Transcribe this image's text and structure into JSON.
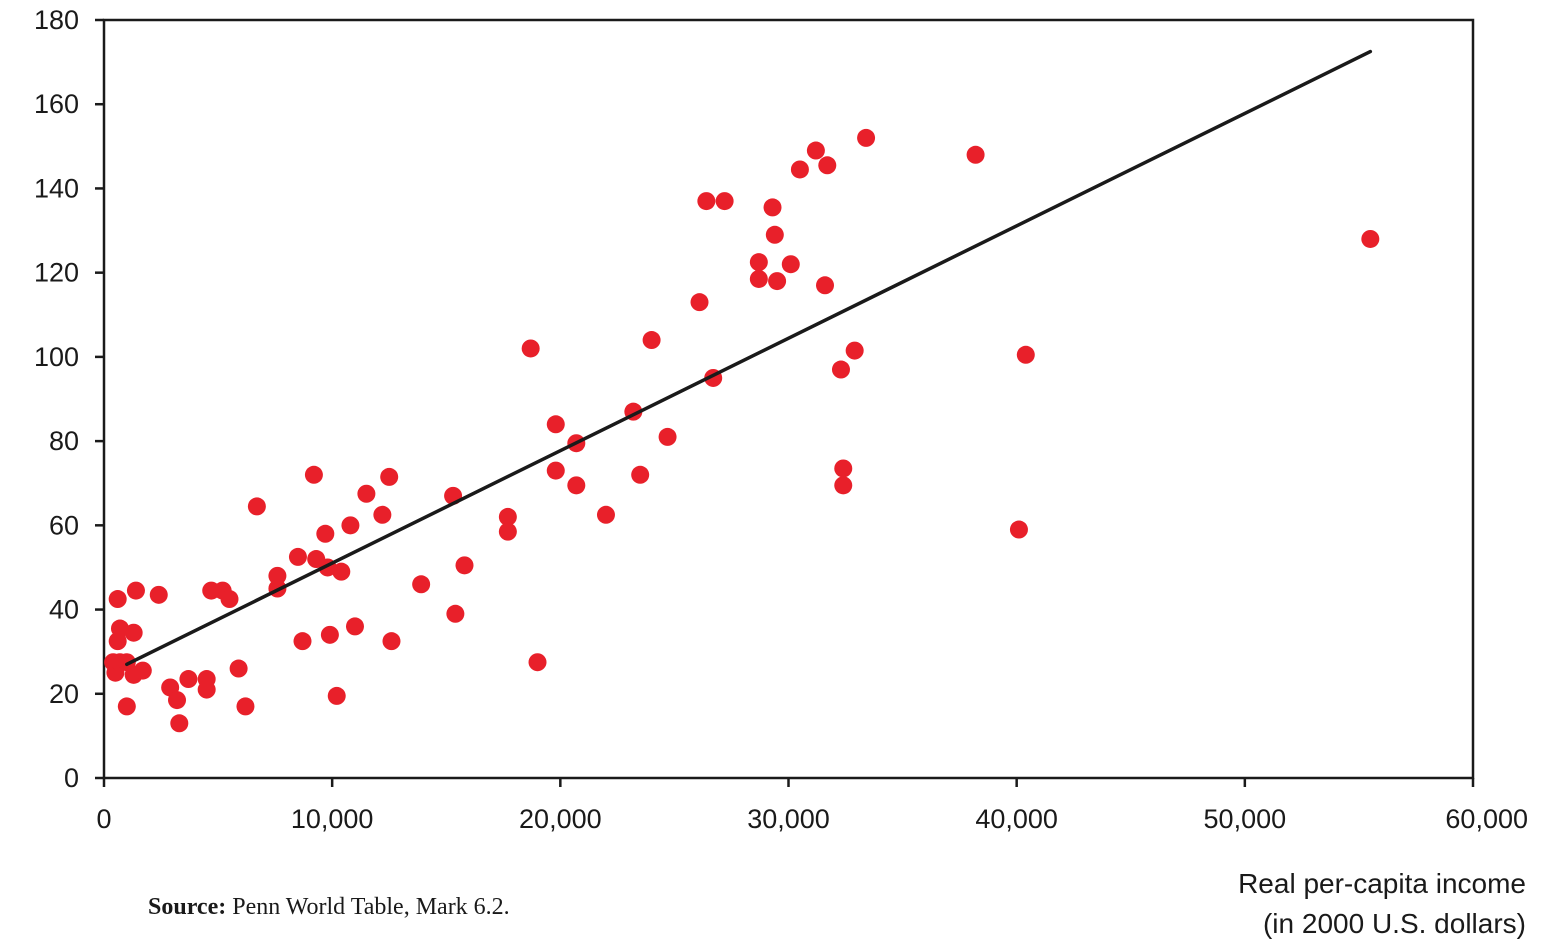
{
  "chart_data": {
    "type": "scatter",
    "title": "",
    "xlabel": [
      "Real per-capita income",
      "(in 2000 U.S. dollars)"
    ],
    "ylabel": "",
    "xlim": [
      0,
      60000
    ],
    "ylim": [
      0,
      180
    ],
    "x_ticks": [
      0,
      10000,
      20000,
      30000,
      40000,
      50000,
      60000
    ],
    "x_tick_labels": [
      "0",
      "10,000",
      "20,000",
      "30,000",
      "40,000",
      "50,000",
      "60,000"
    ],
    "y_ticks": [
      0,
      20,
      40,
      60,
      80,
      100,
      120,
      140,
      160,
      180
    ],
    "y_tick_labels": [
      "0",
      "20",
      "40",
      "60",
      "80",
      "100",
      "120",
      "140",
      "160",
      "180"
    ],
    "grid": false,
    "point_color": "#e8202a",
    "line_color": "#1a1a1a",
    "points": [
      [
        500,
        25
      ],
      [
        400,
        27.5
      ],
      [
        700,
        27.5
      ],
      [
        1000,
        27.5
      ],
      [
        600,
        32.5
      ],
      [
        700,
        35.5
      ],
      [
        600,
        42.5
      ],
      [
        1300,
        34.5
      ],
      [
        1400,
        44.5
      ],
      [
        1300,
        24.5
      ],
      [
        1700,
        25.5
      ],
      [
        1000,
        17
      ],
      [
        2400,
        43.5
      ],
      [
        2900,
        21.5
      ],
      [
        3200,
        18.5
      ],
      [
        3300,
        13
      ],
      [
        3700,
        23.5
      ],
      [
        4500,
        23.5
      ],
      [
        4500,
        21
      ],
      [
        4700,
        44.5
      ],
      [
        5200,
        44.5
      ],
      [
        5500,
        42.5
      ],
      [
        5900,
        26
      ],
      [
        6200,
        17
      ],
      [
        6700,
        64.5
      ],
      [
        7600,
        48
      ],
      [
        7600,
        45
      ],
      [
        8500,
        52.5
      ],
      [
        8700,
        32.5
      ],
      [
        9200,
        72
      ],
      [
        9300,
        52
      ],
      [
        9700,
        58
      ],
      [
        9800,
        50
      ],
      [
        9900,
        34
      ],
      [
        10200,
        19.5
      ],
      [
        10400,
        49
      ],
      [
        10800,
        60
      ],
      [
        11000,
        36
      ],
      [
        11500,
        67.5
      ],
      [
        12200,
        62.5
      ],
      [
        12500,
        71.5
      ],
      [
        12600,
        32.5
      ],
      [
        13900,
        46
      ],
      [
        15300,
        67
      ],
      [
        15400,
        39
      ],
      [
        15800,
        50.5
      ],
      [
        17700,
        62
      ],
      [
        17700,
        58.5
      ],
      [
        18700,
        102
      ],
      [
        19000,
        27.5
      ],
      [
        19800,
        84
      ],
      [
        19800,
        73
      ],
      [
        20700,
        69.5
      ],
      [
        20700,
        79.5
      ],
      [
        22000,
        62.5
      ],
      [
        23200,
        87
      ],
      [
        23500,
        72
      ],
      [
        24000,
        104
      ],
      [
        24700,
        81
      ],
      [
        26100,
        113
      ],
      [
        26400,
        137
      ],
      [
        26700,
        95
      ],
      [
        27200,
        137
      ],
      [
        28700,
        122.5
      ],
      [
        28700,
        118.5
      ],
      [
        29300,
        135.5
      ],
      [
        29400,
        129
      ],
      [
        29500,
        118
      ],
      [
        30100,
        122
      ],
      [
        30500,
        144.5
      ],
      [
        31200,
        149
      ],
      [
        31600,
        117
      ],
      [
        31700,
        145.5
      ],
      [
        32300,
        97
      ],
      [
        32400,
        73.5
      ],
      [
        32400,
        69.5
      ],
      [
        32900,
        101.5
      ],
      [
        33400,
        152
      ],
      [
        38200,
        148
      ],
      [
        40100,
        59
      ],
      [
        40400,
        100.5
      ],
      [
        55500,
        128
      ]
    ],
    "trend_line": {
      "x": [
        1000,
        55500
      ],
      "y": [
        27,
        172.5
      ]
    }
  },
  "source_note": {
    "label": "Source:",
    "text": "Penn World Table, Mark 6.2."
  }
}
